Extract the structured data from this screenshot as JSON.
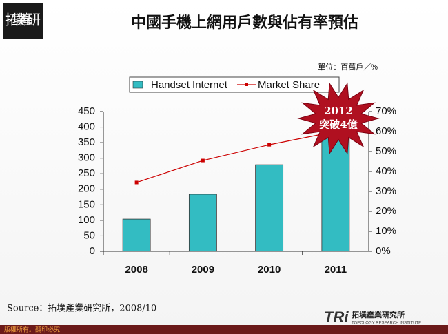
{
  "logo": "拓墣產研",
  "chart_data": {
    "type": "bar",
    "title": "中國手機上網用戶數與佔有率預估",
    "unit_note": "單位：百萬戶／%",
    "categories": [
      "2008",
      "2009",
      "2010",
      "2011"
    ],
    "series": [
      {
        "name": "Handset Internet",
        "type": "bar",
        "color": "#33bcc2",
        "values": [
          104,
          184,
          279,
          390
        ]
      },
      {
        "name": "Market Share",
        "type": "line",
        "axis": "y2",
        "color": "#cc0000",
        "values": [
          34.5,
          45.5,
          53.4,
          60
        ]
      }
    ],
    "ylim": [
      0,
      450
    ],
    "yticks": [
      0,
      50,
      100,
      150,
      200,
      250,
      300,
      350,
      400,
      450
    ],
    "y2lim": [
      0,
      70
    ],
    "y2ticks": [
      {
        "value": 0,
        "label": "0%"
      },
      {
        "value": 10,
        "label": "10%"
      },
      {
        "value": 20,
        "label": "20%"
      },
      {
        "value": 30,
        "label": "30%"
      },
      {
        "value": 40,
        "label": "40%"
      },
      {
        "value": 50,
        "label": "50%"
      },
      {
        "value": 60,
        "label": "60%"
      },
      {
        "value": 70,
        "label": "70%"
      }
    ],
    "annotation": [
      "2012",
      "突破4億"
    ]
  },
  "source": "Source：拓墣產業研究所，2008/10",
  "footer": {
    "copyright": "版權所有。翻印必究",
    "brand": "TRi",
    "brand_name": "拓墣產業研究所",
    "brand_en": "TOPOLOGY RESEARCH INSTITUTE"
  }
}
